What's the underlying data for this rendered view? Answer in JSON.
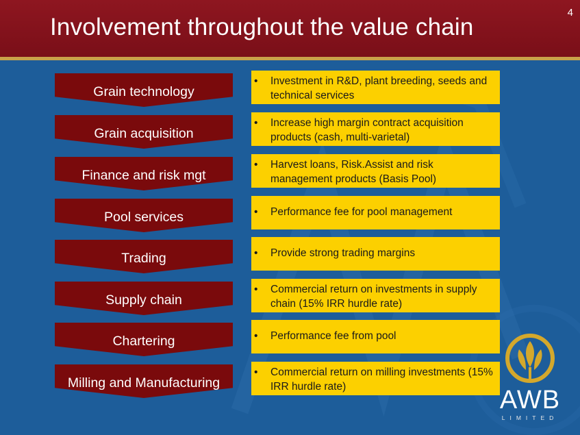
{
  "slide": {
    "title": "Involvement throughout the value chain",
    "page_number": "4"
  },
  "rows": [
    {
      "stage": "Grain technology",
      "bullet": "•",
      "description": "Investment in R&D, plant breeding, seeds and technical services"
    },
    {
      "stage": "Grain acquisition",
      "bullet": "•",
      "description": "Increase high margin contract acquisition products (cash, multi-varietal)"
    },
    {
      "stage": "Finance and risk mgt",
      "bullet": "•",
      "description": "Harvest loans, Risk.Assist and risk management products (Basis Pool)"
    },
    {
      "stage": "Pool services",
      "bullet": "•",
      "description": "Performance fee for pool management"
    },
    {
      "stage": "Trading",
      "bullet": "•",
      "description": "Provide strong trading margins"
    },
    {
      "stage": "Supply chain",
      "bullet": "•",
      "description": "Commercial return on investments in supply chain (15% IRR hurdle rate)"
    },
    {
      "stage": "Chartering",
      "bullet": "•",
      "description": "Performance fee from pool"
    },
    {
      "stage": "Milling and Manufacturing",
      "bullet": "•",
      "description": "Commercial return on milling investments (15% IRR hurdle rate)"
    }
  ],
  "logo": {
    "name": "AWB",
    "subtitle": "LIMITED"
  },
  "colors": {
    "background": "#1d5d9a",
    "header": "#8e1620",
    "stage_arrow": "#7a0a0c",
    "description_box": "#fcd000",
    "accent_gold": "#c9a24a"
  }
}
